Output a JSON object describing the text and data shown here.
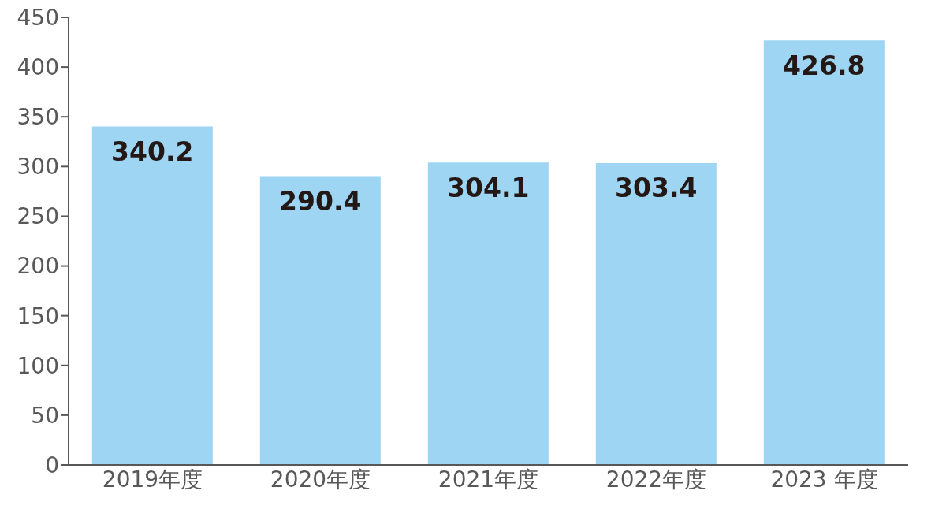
{
  "chart_data": {
    "type": "bar",
    "categories": [
      "2019年度",
      "2020年度",
      "2021年度",
      "2022年度",
      "2023 年度"
    ],
    "values": [
      340.2,
      290.4,
      304.1,
      303.4,
      426.8
    ],
    "color": "#9dd5f2",
    "ylim": [
      0,
      450
    ],
    "yticks": [
      0,
      50,
      100,
      150,
      200,
      250,
      300,
      350,
      400,
      450
    ],
    "grid": false,
    "data_labels": true
  }
}
